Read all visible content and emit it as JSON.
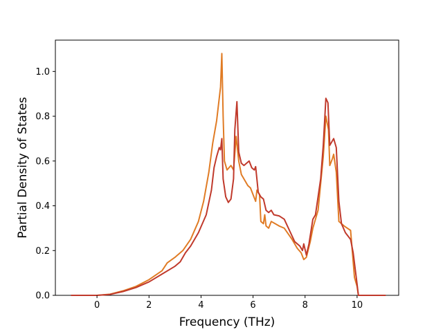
{
  "chart_data": {
    "type": "line",
    "title": "",
    "xlabel": "Frequency (THz)",
    "ylabel": "Partial Density of States",
    "xlim": [
      -1.6,
      11.6
    ],
    "ylim": [
      0,
      1.14
    ],
    "xticks": [
      0,
      2,
      4,
      6,
      8,
      10
    ],
    "yticks": [
      0.0,
      0.2,
      0.4,
      0.6,
      0.8,
      1.0
    ],
    "xtick_labels": [
      "0",
      "2",
      "4",
      "6",
      "8",
      "10"
    ],
    "ytick_labels": [
      "0.0",
      "0.2",
      "0.4",
      "0.6",
      "0.8",
      "1.0"
    ],
    "grid": false,
    "legend": "none",
    "series": [
      {
        "color": "#e07b24",
        "points": [
          [
            -1.0,
            0.0
          ],
          [
            0.0,
            0.0
          ],
          [
            0.5,
            0.005
          ],
          [
            1.0,
            0.02
          ],
          [
            1.5,
            0.04
          ],
          [
            2.0,
            0.07
          ],
          [
            2.5,
            0.11
          ],
          [
            2.7,
            0.145
          ],
          [
            3.0,
            0.17
          ],
          [
            3.3,
            0.2
          ],
          [
            3.6,
            0.25
          ],
          [
            3.9,
            0.33
          ],
          [
            4.1,
            0.42
          ],
          [
            4.3,
            0.55
          ],
          [
            4.45,
            0.68
          ],
          [
            4.6,
            0.78
          ],
          [
            4.7,
            0.88
          ],
          [
            4.75,
            0.93
          ],
          [
            4.8,
            1.08
          ],
          [
            4.85,
            0.8
          ],
          [
            4.9,
            0.6
          ],
          [
            5.0,
            0.56
          ],
          [
            5.15,
            0.58
          ],
          [
            5.25,
            0.56
          ],
          [
            5.35,
            0.71
          ],
          [
            5.45,
            0.6
          ],
          [
            5.55,
            0.54
          ],
          [
            5.7,
            0.51
          ],
          [
            5.8,
            0.49
          ],
          [
            5.9,
            0.48
          ],
          [
            6.0,
            0.45
          ],
          [
            6.1,
            0.42
          ],
          [
            6.15,
            0.47
          ],
          [
            6.25,
            0.45
          ],
          [
            6.3,
            0.33
          ],
          [
            6.4,
            0.32
          ],
          [
            6.45,
            0.36
          ],
          [
            6.5,
            0.31
          ],
          [
            6.6,
            0.3
          ],
          [
            6.7,
            0.33
          ],
          [
            6.85,
            0.32
          ],
          [
            7.0,
            0.31
          ],
          [
            7.2,
            0.3
          ],
          [
            7.5,
            0.25
          ],
          [
            7.7,
            0.21
          ],
          [
            7.85,
            0.19
          ],
          [
            7.95,
            0.16
          ],
          [
            8.05,
            0.17
          ],
          [
            8.2,
            0.24
          ],
          [
            8.3,
            0.3
          ],
          [
            8.5,
            0.38
          ],
          [
            8.6,
            0.5
          ],
          [
            8.7,
            0.62
          ],
          [
            8.8,
            0.8
          ],
          [
            8.9,
            0.74
          ],
          [
            8.95,
            0.58
          ],
          [
            9.05,
            0.61
          ],
          [
            9.1,
            0.63
          ],
          [
            9.2,
            0.55
          ],
          [
            9.3,
            0.33
          ],
          [
            9.5,
            0.31
          ],
          [
            9.75,
            0.29
          ],
          [
            9.9,
            0.08
          ],
          [
            10.0,
            0.04
          ],
          [
            10.05,
            0.0
          ],
          [
            11.1,
            0.0
          ]
        ]
      },
      {
        "color": "#c0392b",
        "points": [
          [
            -1.0,
            0.0
          ],
          [
            0.0,
            0.0
          ],
          [
            0.5,
            0.004
          ],
          [
            1.0,
            0.017
          ],
          [
            1.5,
            0.035
          ],
          [
            2.0,
            0.06
          ],
          [
            2.5,
            0.095
          ],
          [
            3.0,
            0.13
          ],
          [
            3.2,
            0.15
          ],
          [
            3.4,
            0.19
          ],
          [
            3.6,
            0.22
          ],
          [
            3.9,
            0.28
          ],
          [
            4.2,
            0.36
          ],
          [
            4.4,
            0.47
          ],
          [
            4.5,
            0.57
          ],
          [
            4.6,
            0.62
          ],
          [
            4.7,
            0.66
          ],
          [
            4.75,
            0.65
          ],
          [
            4.8,
            0.7
          ],
          [
            4.85,
            0.52
          ],
          [
            4.95,
            0.44
          ],
          [
            5.05,
            0.415
          ],
          [
            5.15,
            0.43
          ],
          [
            5.25,
            0.52
          ],
          [
            5.3,
            0.74
          ],
          [
            5.38,
            0.865
          ],
          [
            5.45,
            0.64
          ],
          [
            5.55,
            0.59
          ],
          [
            5.65,
            0.58
          ],
          [
            5.75,
            0.59
          ],
          [
            5.85,
            0.6
          ],
          [
            5.95,
            0.57
          ],
          [
            6.05,
            0.56
          ],
          [
            6.1,
            0.575
          ],
          [
            6.2,
            0.46
          ],
          [
            6.3,
            0.44
          ],
          [
            6.4,
            0.43
          ],
          [
            6.5,
            0.38
          ],
          [
            6.6,
            0.37
          ],
          [
            6.7,
            0.38
          ],
          [
            6.8,
            0.36
          ],
          [
            7.0,
            0.355
          ],
          [
            7.2,
            0.34
          ],
          [
            7.4,
            0.29
          ],
          [
            7.6,
            0.24
          ],
          [
            7.8,
            0.22
          ],
          [
            7.9,
            0.2
          ],
          [
            7.95,
            0.23
          ],
          [
            8.05,
            0.18
          ],
          [
            8.15,
            0.23
          ],
          [
            8.3,
            0.34
          ],
          [
            8.4,
            0.36
          ],
          [
            8.5,
            0.44
          ],
          [
            8.6,
            0.52
          ],
          [
            8.7,
            0.67
          ],
          [
            8.8,
            0.88
          ],
          [
            8.88,
            0.86
          ],
          [
            8.95,
            0.67
          ],
          [
            9.05,
            0.69
          ],
          [
            9.1,
            0.7
          ],
          [
            9.2,
            0.66
          ],
          [
            9.3,
            0.42
          ],
          [
            9.4,
            0.32
          ],
          [
            9.55,
            0.28
          ],
          [
            9.75,
            0.25
          ],
          [
            9.85,
            0.19
          ],
          [
            10.0,
            0.05
          ],
          [
            10.05,
            0.0
          ],
          [
            11.1,
            0.0
          ]
        ]
      }
    ]
  }
}
